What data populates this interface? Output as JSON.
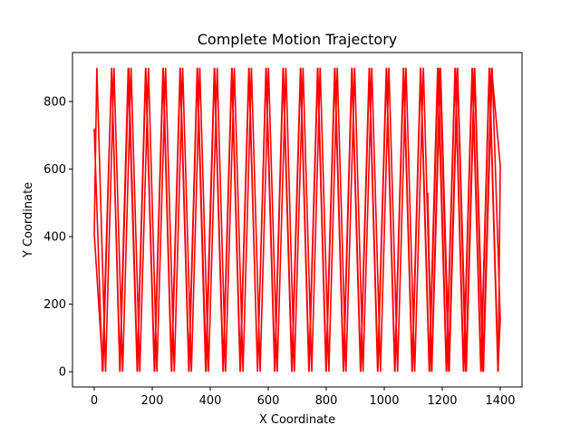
{
  "chart_data": {
    "type": "line",
    "title": "Complete Motion Trajectory",
    "xlabel": "X Coordinate",
    "ylabel": "Y Coordinate",
    "xlim": [
      -75,
      1475
    ],
    "ylim": [
      -45,
      945
    ],
    "xticks": [
      0,
      200,
      400,
      600,
      800,
      1000,
      1200,
      1400
    ],
    "yticks": [
      0,
      200,
      400,
      600,
      800
    ],
    "grid": false,
    "line_color": "#ff0000",
    "series": [
      {
        "x": [
          0,
          28,
          60,
          88,
          117,
          148,
          177,
          207,
          237,
          266,
          296,
          326,
          355,
          384,
          414,
          444,
          474,
          503,
          533,
          563,
          592,
          622,
          651,
          681,
          711,
          740,
          770,
          799,
          829,
          859,
          888,
          918,
          948,
          977,
          1007,
          1036,
          1066,
          1096,
          1125,
          1155,
          1184,
          1214,
          1244,
          1273,
          1303,
          1333,
          1362,
          1392,
          1400,
          1372,
          1342,
          1312,
          1283,
          1253,
          1224,
          1194,
          1164,
          1135,
          1105,
          1075,
          1046,
          1016,
          987,
          957,
          927,
          898,
          868,
          838,
          809,
          779,
          750,
          720,
          690,
          661,
          631,
          601,
          572,
          542,
          513,
          483,
          453,
          424,
          394,
          364,
          335,
          305,
          276,
          246,
          216,
          187,
          157,
          127,
          98,
          68,
          39,
          9,
          0,
          30,
          60,
          89,
          119,
          149,
          178,
          208,
          238,
          267,
          297,
          327,
          356,
          386,
          415,
          445,
          475,
          504,
          534,
          563,
          593,
          623,
          652,
          682,
          712,
          741,
          771,
          800,
          830,
          860,
          889,
          919,
          949,
          978,
          1008,
          1037,
          1067,
          1097,
          1126,
          1156,
          1186,
          1215,
          1245,
          1274,
          1304,
          1334,
          1363,
          1393,
          1400,
          1370,
          1340,
          1311,
          1281,
          1252,
          1222,
          1192,
          1163,
          1150
        ],
        "y": [
          720,
          0,
          900,
          0,
          900,
          0,
          900,
          0,
          900,
          0,
          900,
          0,
          900,
          0,
          900,
          0,
          900,
          0,
          900,
          0,
          900,
          0,
          900,
          0,
          900,
          0,
          900,
          0,
          900,
          0,
          900,
          0,
          900,
          0,
          900,
          0,
          900,
          0,
          900,
          0,
          900,
          0,
          900,
          0,
          900,
          0,
          900,
          0,
          155,
          900,
          0,
          900,
          0,
          900,
          0,
          900,
          0,
          900,
          0,
          900,
          0,
          900,
          0,
          900,
          0,
          900,
          0,
          900,
          0,
          900,
          0,
          900,
          0,
          900,
          0,
          900,
          0,
          900,
          0,
          900,
          0,
          900,
          0,
          900,
          0,
          900,
          0,
          900,
          0,
          900,
          0,
          900,
          0,
          900,
          0,
          900,
          410,
          0,
          900,
          0,
          900,
          0,
          900,
          0,
          900,
          0,
          900,
          0,
          900,
          0,
          900,
          0,
          900,
          0,
          900,
          0,
          900,
          0,
          900,
          0,
          900,
          0,
          900,
          0,
          900,
          0,
          900,
          0,
          900,
          0,
          900,
          0,
          900,
          0,
          900,
          0,
          900,
          0,
          900,
          0,
          900,
          0,
          900,
          0,
          610,
          900,
          0,
          900,
          0,
          900,
          0,
          900,
          0,
          530
        ]
      }
    ]
  }
}
